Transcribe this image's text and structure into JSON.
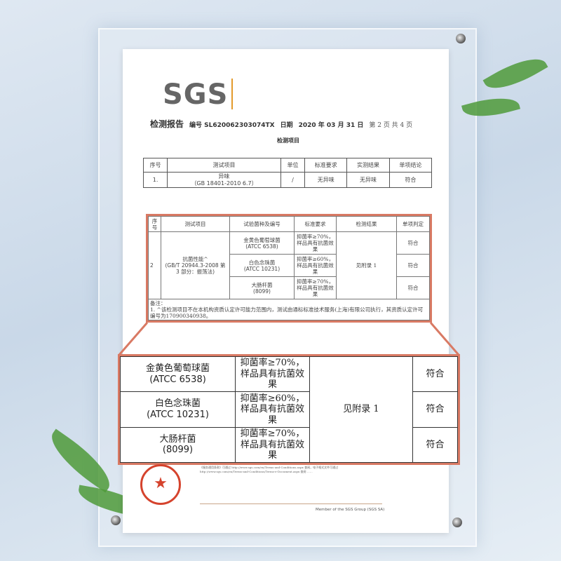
{
  "logo": "SGS",
  "header": {
    "title": "检测报告",
    "number": "编号 SL620062303074TX",
    "date_label": "日期",
    "date": "2020 年 03 月 31 日",
    "page": "第 2 页 共 4 页"
  },
  "section_title": "检测项目",
  "table1": {
    "headers": [
      "序号",
      "测试项目",
      "单位",
      "标准要求",
      "实测结果",
      "单项结论"
    ],
    "row": {
      "no": "1.",
      "item": "异味",
      "standard": "（GB 18401-2010 6.7）",
      "unit": "/",
      "requirement": "无异味",
      "result": "无异味",
      "conclusion": "符合"
    }
  },
  "table2": {
    "headers": [
      "序号",
      "测试项目",
      "试验菌种及编号",
      "标准要求",
      "检测结果",
      "单项判定"
    ],
    "no": "2",
    "item": "抗菌性能^",
    "standard": "(GB/T 20944.3-2008 第 3 部分：振荡法)",
    "result": "见附录 1",
    "rows": [
      {
        "strain": "金黄色葡萄球菌",
        "code": "(ATCC 6538)",
        "requirement": "抑菌率≥70%，样品具有抗菌效果",
        "conclusion": "符合"
      },
      {
        "strain": "白色念珠菌",
        "code": "(ATCC 10231)",
        "requirement": "抑菌率≥60%，样品具有抗菌效果",
        "conclusion": "符合"
      },
      {
        "strain": "大肠杆菌",
        "code": "(8099)",
        "requirement": "抑菌率≥70%，样品具有抗菌效果",
        "conclusion": "符合"
      }
    ],
    "notes_label": "备注：",
    "note": "1. ^该检测项目不在本机构资质认定许可能力范围内，测试由通标标准技术服务(上海)有限公司执行，其资质认定许可编号为170900340938。"
  },
  "footer": {
    "fine_print": "《服务通用条款》可通过 http://www.sgs.com/en/Terms-and-Conditions.aspx 查阅，电子格式文件可通过 http://www.sgs.com/en/Terms-and-Conditions/Terms-e-Document.aspx 查阅 ……",
    "member": "Member of the SGS Group (SGS SA)"
  },
  "colors": {
    "highlight": "#d97a64",
    "seal": "#d5432d"
  }
}
